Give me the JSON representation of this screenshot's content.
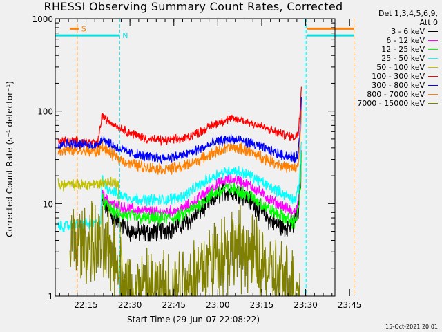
{
  "chart_data": {
    "type": "line",
    "title": "RHESSI Observing Summary Count Rates, Corrected",
    "xlabel": "Start Time (29-Jun-07 22:08:22)",
    "ylabel": "Corrected Count Rate (s⁻¹ detector⁻¹)",
    "yscale": "log",
    "ylim": [
      1,
      1000
    ],
    "y_ticks": [
      {
        "v": 1,
        "label": "1"
      },
      {
        "v": 10,
        "label": "10"
      },
      {
        "v": 100,
        "label": "100"
      },
      {
        "v": 1000,
        "label": "1000"
      }
    ],
    "xlim_min": [
      4.5,
      100
    ],
    "x_ticks": [
      {
        "m": 15,
        "label": "22:15"
      },
      {
        "m": 30,
        "label": "22:30"
      },
      {
        "m": 45,
        "label": "22:45"
      },
      {
        "m": 60,
        "label": "23:00"
      },
      {
        "m": 75,
        "label": "23:15"
      },
      {
        "m": 90,
        "label": "23:30"
      },
      {
        "m": 105,
        "label": "23:45"
      }
    ],
    "x_minor_step_min": 3,
    "x_tick_time_base": "22:00",
    "grid": false,
    "legend_header": [
      "Det 1,3,4,5,6,9,",
      "Att 0"
    ],
    "legend_position": "right",
    "flags": [
      {
        "label": "S",
        "color": "#ff8000",
        "y": 780,
        "segments": [
          [
            9.5,
            12.5
          ],
          [
            90.5,
            106.5
          ]
        ]
      },
      {
        "label": "N",
        "color": "#00e0e0",
        "y": 660,
        "segments": [
          [
            4.5,
            26.5
          ],
          [
            90.5,
            106.5
          ]
        ]
      }
    ],
    "markers": [
      {
        "m": 12.0,
        "color": "#ff8000"
      },
      {
        "m": 26.5,
        "color": "#00e0e0"
      },
      {
        "m": 89.8,
        "color": "#00e0e0"
      },
      {
        "m": 90.3,
        "color": "#00e0e0"
      },
      {
        "m": 106.5,
        "color": "#ff8000"
      }
    ],
    "series": [
      {
        "name": "3 - 6 keV",
        "color": "#000000",
        "noise": 0.09,
        "drop_threshold": 3,
        "points": [
          [
            20.5,
            10.5
          ],
          [
            22,
            9
          ],
          [
            24,
            7
          ],
          [
            27,
            6
          ],
          [
            30,
            5
          ],
          [
            36,
            4.8
          ],
          [
            45,
            5.5
          ],
          [
            50,
            6.5
          ],
          [
            56,
            9.5
          ],
          [
            60,
            12.5
          ],
          [
            64,
            14
          ],
          [
            68,
            13
          ],
          [
            72,
            10
          ],
          [
            78,
            6.5
          ],
          [
            82,
            5.5
          ],
          [
            86,
            6
          ],
          [
            87.5,
            8
          ],
          [
            88.3,
            18
          ],
          [
            88.6,
            40
          ]
        ]
      },
      {
        "name": "6 - 12 keV",
        "color": "#ff00ff",
        "noise": 0.05,
        "drop_threshold": 3,
        "points": [
          [
            20.5,
            13
          ],
          [
            22,
            11
          ],
          [
            25,
            9.5
          ],
          [
            28,
            9
          ],
          [
            33,
            8.5
          ],
          [
            40,
            8
          ],
          [
            47,
            8.5
          ],
          [
            52,
            10.5
          ],
          [
            58,
            15
          ],
          [
            63,
            18
          ],
          [
            67,
            18
          ],
          [
            72,
            15
          ],
          [
            78,
            11
          ],
          [
            83,
            9
          ],
          [
            86,
            8
          ],
          [
            87.5,
            10
          ],
          [
            88.3,
            20
          ],
          [
            88.6,
            45
          ]
        ]
      },
      {
        "name": "12 - 25 keV",
        "color": "#00ff00",
        "noise": 0.06,
        "drop_threshold": 3,
        "points": [
          [
            20.5,
            11
          ],
          [
            22,
            9.5
          ],
          [
            25,
            8
          ],
          [
            28,
            7.5
          ],
          [
            33,
            7
          ],
          [
            40,
            6.8
          ],
          [
            47,
            7.2
          ],
          [
            52,
            9
          ],
          [
            58,
            12.5
          ],
          [
            63,
            14.5
          ],
          [
            67,
            14
          ],
          [
            72,
            11.5
          ],
          [
            78,
            8.5
          ],
          [
            83,
            7
          ],
          [
            86,
            6.2
          ],
          [
            87.5,
            8
          ],
          [
            88.3,
            17
          ],
          [
            88.6,
            40
          ]
        ]
      },
      {
        "name": "25 - 50 keV",
        "color": "#00ffff",
        "noise": 0.05,
        "drop_threshold": 3,
        "points": [
          [
            5.5,
            5.6
          ],
          [
            8,
            5.7
          ],
          [
            11,
            5.8
          ],
          [
            14,
            6
          ],
          [
            17,
            6
          ],
          [
            20,
            6.2
          ],
          [
            20.5,
            18
          ],
          [
            22,
            15
          ],
          [
            25,
            13
          ],
          [
            30,
            11.5
          ],
          [
            35,
            11
          ],
          [
            42,
            11
          ],
          [
            48,
            12
          ],
          [
            54,
            16
          ],
          [
            60,
            21
          ],
          [
            65,
            23
          ],
          [
            70,
            21
          ],
          [
            75,
            17
          ],
          [
            80,
            14
          ],
          [
            84,
            12
          ],
          [
            86.5,
            11
          ],
          [
            87.7,
            15
          ],
          [
            88.6,
            55
          ]
        ]
      },
      {
        "name": "50 - 100 keV",
        "color": "#c0c000",
        "noise": 0.05,
        "drop_threshold": 3,
        "points": [
          [
            5.5,
            16
          ],
          [
            10,
            16
          ],
          [
            15,
            16
          ],
          [
            20,
            16.5
          ],
          [
            20.5,
            17
          ],
          [
            26,
            17
          ],
          [
            27,
            3
          ],
          [
            28,
            1
          ]
        ]
      },
      {
        "name": "100 - 300 keV",
        "color": "#ff0000",
        "noise": 0.04,
        "drop_threshold": 3,
        "points": [
          [
            5.5,
            48
          ],
          [
            10,
            47
          ],
          [
            15,
            46
          ],
          [
            19,
            45
          ],
          [
            20.5,
            90
          ],
          [
            22,
            80
          ],
          [
            26,
            68
          ],
          [
            30,
            58
          ],
          [
            36,
            50
          ],
          [
            42,
            48
          ],
          [
            48,
            50
          ],
          [
            54,
            60
          ],
          [
            60,
            75
          ],
          [
            64,
            82
          ],
          [
            68,
            80
          ],
          [
            73,
            72
          ],
          [
            78,
            62
          ],
          [
            83,
            55
          ],
          [
            86.5,
            52
          ],
          [
            87.5,
            58
          ],
          [
            88.3,
            130
          ],
          [
            88.6,
            230
          ]
        ]
      },
      {
        "name": "300 - 800 keV",
        "color": "#0000ff",
        "noise": 0.045,
        "drop_threshold": 3,
        "points": [
          [
            5.5,
            44
          ],
          [
            10,
            44
          ],
          [
            15,
            43
          ],
          [
            19,
            42
          ],
          [
            20.5,
            52
          ],
          [
            22,
            47
          ],
          [
            26,
            40
          ],
          [
            30,
            35
          ],
          [
            36,
            32
          ],
          [
            42,
            31
          ],
          [
            48,
            33
          ],
          [
            54,
            39
          ],
          [
            60,
            47
          ],
          [
            64,
            50
          ],
          [
            68,
            48
          ],
          [
            73,
            43
          ],
          [
            78,
            37
          ],
          [
            83,
            33
          ],
          [
            86.5,
            31
          ],
          [
            87.5,
            35
          ],
          [
            88.3,
            80
          ],
          [
            88.6,
            160
          ]
        ]
      },
      {
        "name": "800 - 7000 keV",
        "color": "#ff8000",
        "noise": 0.05,
        "drop_threshold": 3,
        "points": [
          [
            5.5,
            38
          ],
          [
            10,
            37
          ],
          [
            15,
            37
          ],
          [
            19,
            36
          ],
          [
            20.5,
            42
          ],
          [
            22,
            37
          ],
          [
            26,
            31
          ],
          [
            30,
            27
          ],
          [
            36,
            24.5
          ],
          [
            42,
            23.5
          ],
          [
            48,
            25
          ],
          [
            54,
            30
          ],
          [
            60,
            37
          ],
          [
            64,
            40
          ],
          [
            68,
            39
          ],
          [
            73,
            34
          ],
          [
            78,
            29
          ],
          [
            83,
            25
          ],
          [
            86.5,
            23.5
          ],
          [
            87.5,
            27
          ],
          [
            88.3,
            60
          ],
          [
            88.6,
            120
          ]
        ]
      },
      {
        "name": "7000 - 15000 keV",
        "color": "#808000",
        "noise": 0.35,
        "drop_threshold": 3,
        "points": [
          [
            9.5,
            3.8
          ],
          [
            12,
            3.8
          ],
          [
            15,
            3.6
          ],
          [
            18,
            3.5
          ],
          [
            21,
            3.3
          ],
          [
            24,
            3
          ],
          [
            26.5,
            2.4
          ],
          [
            27,
            1.2
          ],
          [
            40,
            1.1
          ],
          [
            50,
            1.5
          ],
          [
            55,
            2.0
          ],
          [
            58,
            2.5
          ],
          [
            62,
            3.0
          ],
          [
            66,
            3.3
          ],
          [
            70,
            3.1
          ],
          [
            74,
            2.4
          ],
          [
            78,
            1.7
          ],
          [
            82,
            1.4
          ],
          [
            86.5,
            1.4
          ],
          [
            88,
            1.2
          ]
        ]
      }
    ],
    "footer_stamp": "15-Oct-2021 20:01"
  }
}
